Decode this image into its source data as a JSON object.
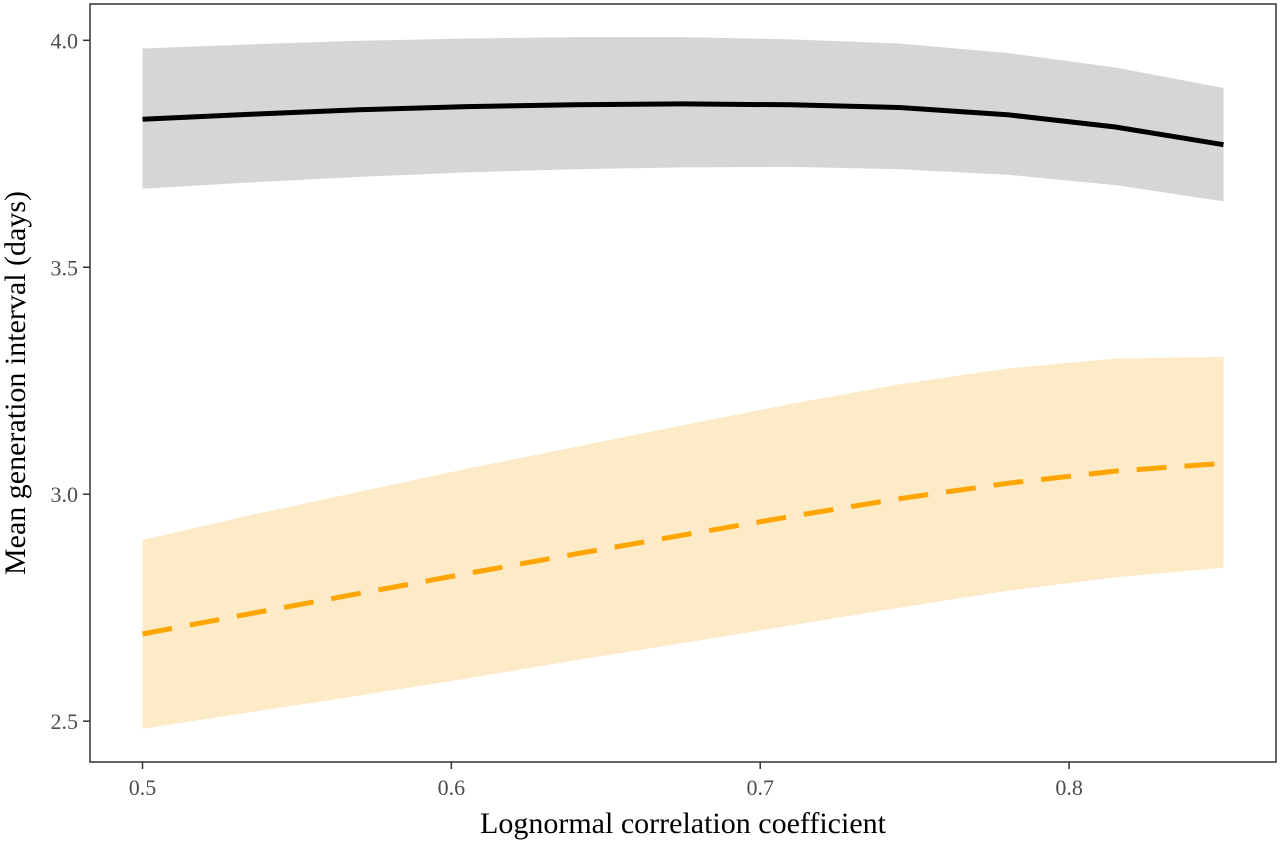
{
  "chart_data": {
    "type": "line",
    "title": "",
    "xlabel": "Lognormal correlation coefficient",
    "ylabel": "Mean generation interval (days)",
    "xlim": [
      0.483,
      0.867
    ],
    "ylim": [
      2.41,
      4.08
    ],
    "xticks": [
      0.5,
      0.6,
      0.7,
      0.8
    ],
    "xtick_labels": [
      "0.5",
      "0.6",
      "0.7",
      "0.8"
    ],
    "yticks": [
      2.5,
      3.0,
      3.5,
      4.0
    ],
    "ytick_labels": [
      "2.5",
      "3.0",
      "3.5",
      "4.0"
    ],
    "grid": false,
    "legend": "none",
    "x": [
      0.5,
      0.535,
      0.57,
      0.605,
      0.64,
      0.675,
      0.71,
      0.745,
      0.78,
      0.815,
      0.85
    ],
    "series": [
      {
        "style": "solid",
        "line_color": "#000000",
        "band_color": "#d6d6d6",
        "values": [
          3.826,
          3.837,
          3.847,
          3.854,
          3.858,
          3.86,
          3.858,
          3.852,
          3.836,
          3.809,
          3.77
        ],
        "lower": [
          3.673,
          3.687,
          3.699,
          3.709,
          3.716,
          3.72,
          3.721,
          3.716,
          3.704,
          3.681,
          3.645
        ],
        "upper": [
          3.982,
          3.991,
          3.999,
          4.004,
          4.007,
          4.007,
          4.002,
          3.993,
          3.972,
          3.94,
          3.895
        ]
      },
      {
        "style": "dashed",
        "line_color": "#ffa500",
        "band_color": "#fdebc8",
        "values": [
          2.692,
          2.737,
          2.781,
          2.825,
          2.868,
          2.91,
          2.951,
          2.99,
          3.024,
          3.051,
          3.068
        ],
        "lower": [
          2.483,
          2.52,
          2.556,
          2.594,
          2.634,
          2.672,
          2.711,
          2.75,
          2.787,
          2.817,
          2.838
        ],
        "upper": [
          2.899,
          2.954,
          3.005,
          3.056,
          3.104,
          3.152,
          3.199,
          3.242,
          3.277,
          3.299,
          3.303
        ]
      }
    ]
  }
}
